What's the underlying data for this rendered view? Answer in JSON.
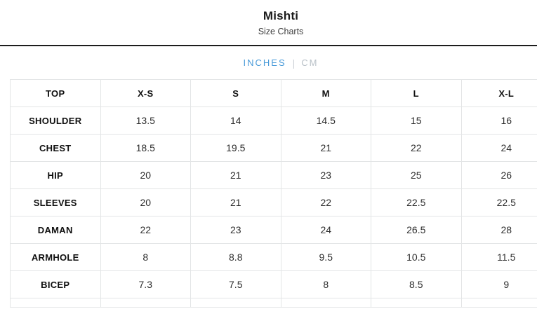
{
  "header": {
    "title": "Mishti",
    "subtitle": "Size Charts"
  },
  "unit_tabs": {
    "inches_label": "INCHES",
    "separator": "|",
    "cm_label": "CM",
    "active_tab": "INCHES",
    "active_color": "#4a9bd9",
    "inactive_color": "#b9c1c8"
  },
  "table": {
    "columns": [
      "TOP",
      "X-S",
      "S",
      "M",
      "L",
      "X-L"
    ],
    "rows": [
      {
        "label": "SHOULDER",
        "values": [
          "13.5",
          "14",
          "14.5",
          "15",
          "16"
        ]
      },
      {
        "label": "CHEST",
        "values": [
          "18.5",
          "19.5",
          "21",
          "22",
          "24"
        ]
      },
      {
        "label": "HIP",
        "values": [
          "20",
          "21",
          "23",
          "25",
          "26"
        ]
      },
      {
        "label": "SLEEVES",
        "values": [
          "20",
          "21",
          "22",
          "22.5",
          "22.5"
        ]
      },
      {
        "label": "DAMAN",
        "values": [
          "22",
          "23",
          "24",
          "26.5",
          "28"
        ]
      },
      {
        "label": "ARMHOLE",
        "values": [
          "8",
          "8.8",
          "9.5",
          "10.5",
          "11.5"
        ]
      },
      {
        "label": "BICEP",
        "values": [
          "7.3",
          "7.5",
          "8",
          "8.5",
          "9"
        ]
      }
    ]
  }
}
